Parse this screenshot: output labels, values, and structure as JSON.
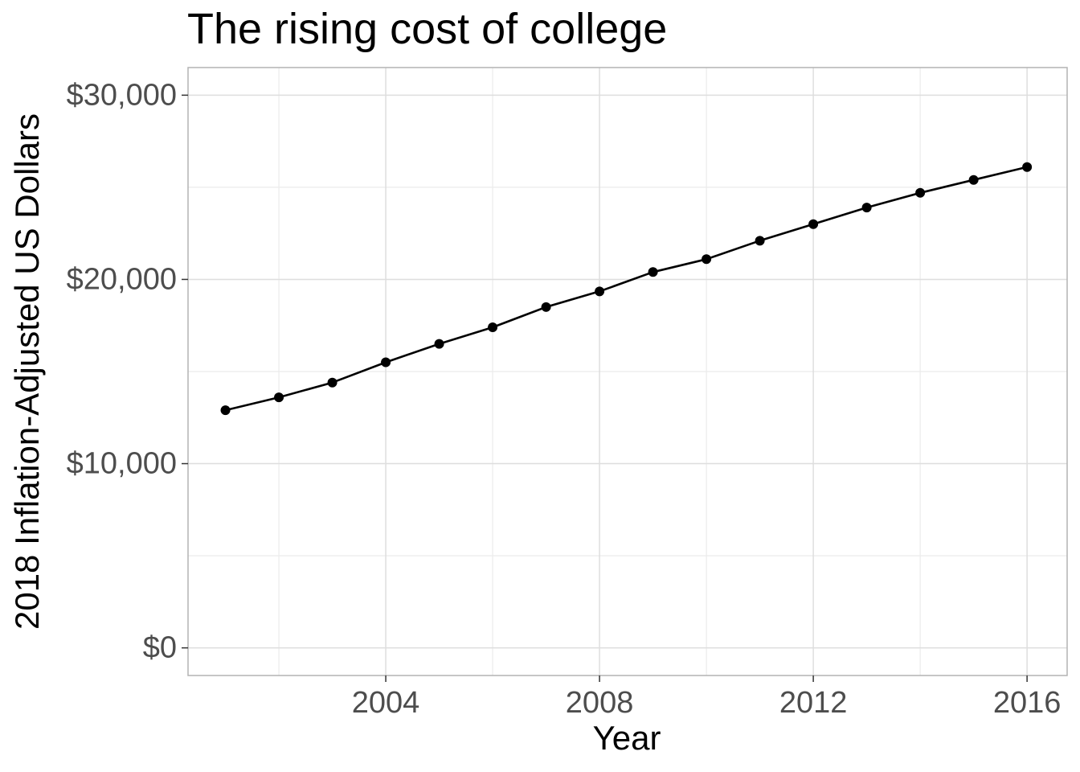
{
  "chart_data": {
    "type": "line",
    "title": "The rising cost of college",
    "xlabel": "Year",
    "ylabel": "2018 Inflation-Adjusted US Dollars",
    "x_ticks": [
      2004,
      2008,
      2012,
      2016
    ],
    "x_tick_labels": [
      "2004",
      "2008",
      "2012",
      "2016"
    ],
    "y_ticks": [
      0,
      10000,
      20000,
      30000
    ],
    "y_tick_labels": [
      "$0",
      "$10,000",
      "$20,000",
      "$30,000"
    ],
    "xlim": [
      2000.3,
      2016.75
    ],
    "ylim": [
      -1500,
      31500
    ],
    "grid": true,
    "series": [
      {
        "x": [
          2001,
          2002,
          2003,
          2004,
          2005,
          2006,
          2007,
          2008,
          2009,
          2010,
          2011,
          2012,
          2013,
          2014,
          2015,
          2016
        ],
        "y": [
          12900,
          13600,
          14400,
          15500,
          16500,
          17400,
          18500,
          19350,
          20400,
          21100,
          22100,
          23000,
          23900,
          24700,
          25400,
          26100
        ],
        "color": "#000000"
      }
    ]
  }
}
